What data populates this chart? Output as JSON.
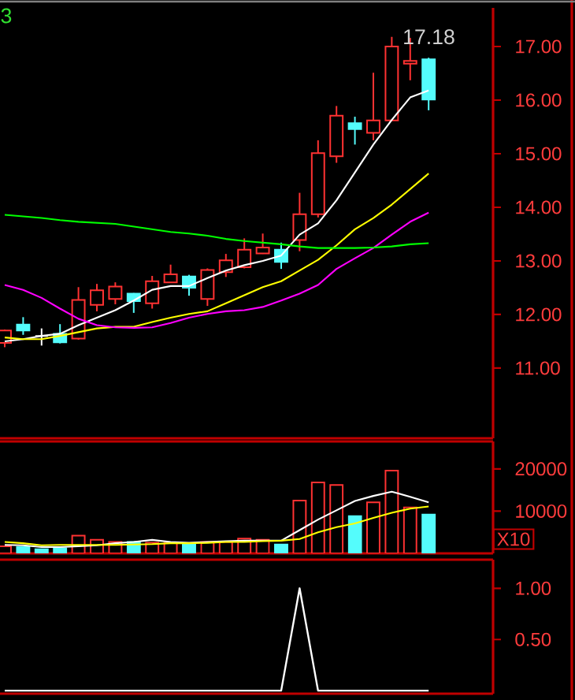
{
  "chart_data": [
    {
      "type": "candlestick",
      "categories": [
        null,
        null,
        null,
        null,
        null,
        null,
        null,
        null,
        null,
        null,
        null,
        null,
        null,
        null,
        null,
        null,
        null,
        null,
        null,
        null,
        null,
        null,
        null,
        null
      ],
      "ohlc": [
        [
          11.47,
          11.72,
          11.39,
          11.7
        ],
        [
          11.81,
          11.95,
          11.62,
          11.7
        ],
        [
          11.6,
          11.74,
          11.42,
          11.6
        ],
        [
          11.64,
          11.82,
          11.46,
          11.48
        ],
        [
          11.55,
          12.51,
          11.53,
          12.27
        ],
        [
          12.18,
          12.57,
          12.06,
          12.45
        ],
        [
          12.29,
          12.6,
          12.19,
          12.52
        ],
        [
          12.39,
          12.4,
          12.03,
          12.25
        ],
        [
          12.21,
          12.72,
          12.11,
          12.62
        ],
        [
          12.6,
          12.93,
          12.59,
          12.75
        ],
        [
          12.71,
          12.74,
          12.35,
          12.5
        ],
        [
          12.29,
          12.86,
          12.16,
          12.83
        ],
        [
          12.79,
          13.13,
          12.7,
          13.01
        ],
        [
          12.88,
          13.42,
          12.86,
          13.21
        ],
        [
          13.14,
          13.51,
          13.13,
          13.25
        ],
        [
          13.21,
          13.34,
          12.85,
          12.98
        ],
        [
          13.39,
          14.27,
          13.18,
          13.87
        ],
        [
          13.87,
          15.25,
          13.81,
          15.01
        ],
        [
          14.95,
          15.89,
          14.83,
          15.71
        ],
        [
          15.57,
          15.69,
          15.17,
          15.46
        ],
        [
          15.39,
          16.51,
          15.25,
          15.62
        ],
        [
          15.62,
          17.18,
          15.62,
          17.0
        ],
        [
          16.68,
          17.16,
          16.37,
          16.73
        ],
        [
          16.76,
          16.79,
          15.81,
          16.01
        ]
      ],
      "colors": [
        "#ff3232",
        "#54fcfc",
        "#ffffff",
        "#54fcfc",
        "#ff3232",
        "#ff3232",
        "#ff3232",
        "#54fcfc",
        "#ff3232",
        "#ff3232",
        "#54fcfc",
        "#ff3232",
        "#ff3232",
        "#ff3232",
        "#ff3232",
        "#54fcfc",
        "#ff3232",
        "#ff3232",
        "#ff3232",
        "#54fcfc",
        "#ff3232",
        "#ff3232",
        "#ff3232",
        "#54fcfc"
      ],
      "series": [
        {
          "type": "line",
          "color": "#ffffff",
          "values": [
            11.5,
            11.54,
            11.6,
            11.64,
            11.8,
            11.94,
            12.08,
            12.26,
            12.46,
            12.53,
            12.53,
            12.68,
            12.82,
            12.92,
            13.0,
            13.1,
            13.49,
            13.7,
            14.13,
            14.65,
            15.17,
            15.63,
            16.05,
            16.18
          ]
        },
        {
          "type": "line",
          "color": "#ffff00",
          "values": [
            11.57,
            11.54,
            11.54,
            11.6,
            11.67,
            11.74,
            11.77,
            11.77,
            11.86,
            11.94,
            12.01,
            12.06,
            12.21,
            12.36,
            12.51,
            12.62,
            12.82,
            13.02,
            13.29,
            13.59,
            13.8,
            14.05,
            14.34,
            14.63
          ]
        },
        {
          "type": "line",
          "color": "#ff00ff",
          "values": [
            12.55,
            12.46,
            12.31,
            12.11,
            11.92,
            11.8,
            11.76,
            11.75,
            11.76,
            11.84,
            11.94,
            12.01,
            12.06,
            12.08,
            12.14,
            12.26,
            12.39,
            12.55,
            12.85,
            13.05,
            13.24,
            13.49,
            13.73,
            13.9
          ]
        },
        {
          "type": "line",
          "color": "#00ff00",
          "values": [
            13.86,
            13.83,
            13.8,
            13.76,
            13.73,
            13.71,
            13.69,
            13.64,
            13.59,
            13.54,
            13.51,
            13.47,
            13.41,
            13.37,
            13.34,
            13.31,
            13.27,
            13.24,
            13.24,
            13.24,
            13.25,
            13.27,
            13.31,
            13.33
          ]
        }
      ],
      "ylim": [
        9.69,
        17.72
      ],
      "yticks": [
        {
          "value": 11,
          "label": "11.00"
        },
        {
          "value": 12,
          "label": "12.00"
        },
        {
          "value": 13,
          "label": "13.00"
        },
        {
          "value": 14,
          "label": "14.00"
        },
        {
          "value": 15,
          "label": "15.00"
        },
        {
          "value": 16,
          "label": "16.00"
        },
        {
          "value": 17,
          "label": "17.00"
        }
      ],
      "annotations": [
        "3",
        "17.18"
      ]
    },
    {
      "type": "bar",
      "categories": [
        null,
        null,
        null,
        null,
        null,
        null,
        null,
        null,
        null,
        null,
        null,
        null,
        null,
        null,
        null,
        null,
        null,
        null,
        null,
        null,
        null,
        null,
        null,
        null
      ],
      "series": [
        {
          "type": "bar",
          "colors": [
            "#ff3232",
            "#54fcfc",
            "#54fcfc",
            "#54fcfc",
            "#ff3232",
            "#ff3232",
            "#ff3232",
            "#54fcfc",
            "#ff3232",
            "#ff3232",
            "#54fcfc",
            "#ff3232",
            "#ff3232",
            "#ff3232",
            "#ff3232",
            "#54fcfc",
            "#ff3232",
            "#ff3232",
            "#ff3232",
            "#54fcfc",
            "#ff3232",
            "#ff3232",
            "#ff3232",
            "#54fcfc"
          ],
          "values": [
            1700,
            1500,
            1000,
            1200,
            4200,
            3200,
            2700,
            2700,
            2500,
            2500,
            2100,
            2700,
            2700,
            3500,
            3200,
            2100,
            12500,
            16800,
            16200,
            8800,
            12100,
            19600,
            10900,
            9200
          ]
        },
        {
          "type": "line",
          "color": "#ffffff",
          "values": [
            2000,
            1900,
            1500,
            1500,
            1700,
            1900,
            2400,
            2700,
            3200,
            2700,
            2500,
            2700,
            2900,
            3000,
            3000,
            3000,
            5500,
            8000,
            10200,
            12400,
            13600,
            14600,
            13400,
            12100
          ]
        },
        {
          "type": "line",
          "color": "#ffff00",
          "values": [
            2700,
            2400,
            1900,
            2000,
            2000,
            2000,
            2000,
            2100,
            2200,
            2400,
            2400,
            2500,
            2700,
            2700,
            2900,
            3000,
            3400,
            5000,
            6200,
            7100,
            8400,
            9600,
            10600,
            11100
          ]
        }
      ],
      "ylim": [
        0,
        26500
      ],
      "yticks": [
        10000,
        20000
      ],
      "annotations": [
        "X10"
      ]
    },
    {
      "type": "line",
      "categories": [
        null,
        null,
        null,
        null,
        null,
        null,
        null,
        null,
        null,
        null,
        null,
        null,
        null,
        null,
        null,
        null,
        null,
        null,
        null,
        null,
        null,
        null,
        null,
        null
      ],
      "series": [
        {
          "color": "#ffffff",
          "values": [
            0,
            0,
            0,
            0,
            0,
            0,
            0,
            0,
            0,
            0,
            0,
            0,
            0,
            0,
            0,
            0,
            1,
            0,
            0,
            0,
            0,
            0,
            0,
            0
          ]
        }
      ],
      "ylim": [
        -0.03,
        1.28
      ],
      "yticks": [
        {
          "value": 1,
          "label": "1.00"
        },
        {
          "value": 0.5,
          "label": "0.50"
        }
      ]
    }
  ]
}
